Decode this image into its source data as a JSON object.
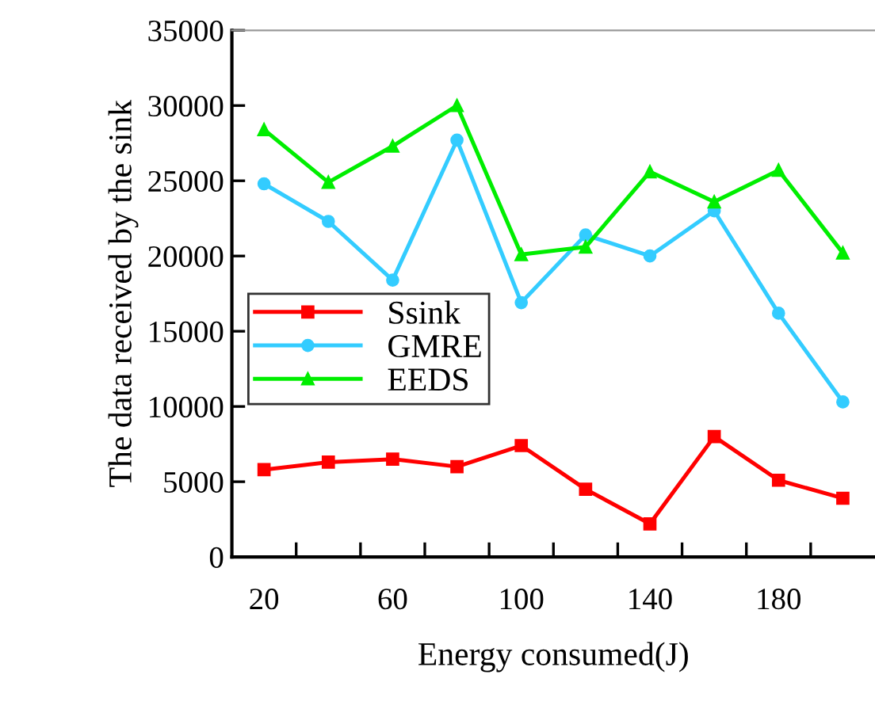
{
  "chart_data": {
    "type": "line",
    "xlabel": "Energy consumed(J)",
    "ylabel": "The data received by the sink",
    "categories": [
      "20",
      null,
      "60",
      null,
      "100",
      null,
      "140",
      null,
      "180",
      null
    ],
    "ylim": [
      0,
      35000
    ],
    "yticks": [
      0,
      5000,
      10000,
      15000,
      20000,
      25000,
      30000,
      35000
    ],
    "grid": false,
    "legend": "center left",
    "series": [
      {
        "name": "Ssink",
        "color": "#ff0000",
        "marker": "square",
        "values": [
          5800,
          6300,
          6500,
          6000,
          7400,
          4500,
          2200,
          8000,
          5100,
          3900
        ]
      },
      {
        "name": "GMRE",
        "color": "#33ccff",
        "marker": "circle",
        "values": [
          24800,
          22300,
          18400,
          27700,
          16900,
          21400,
          20000,
          23000,
          16200,
          10300
        ]
      },
      {
        "name": "EEDS",
        "color": "#00ee00",
        "marker": "triangle",
        "values": [
          28400,
          24900,
          27300,
          30000,
          20100,
          20600,
          25600,
          23600,
          25700,
          20200
        ]
      }
    ]
  }
}
